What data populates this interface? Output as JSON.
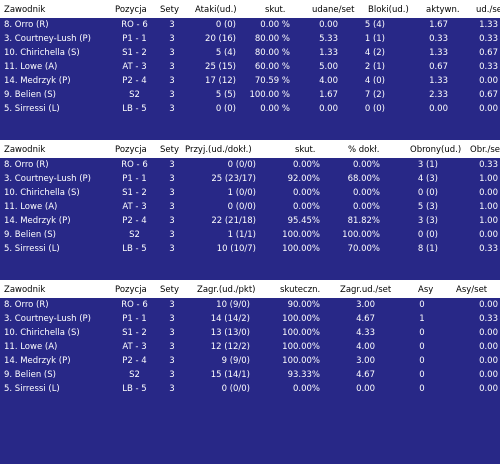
{
  "tables": [
    {
      "headers": [
        "Zawodnik",
        "Pozycja",
        "Sety",
        "Ataki(ud.)",
        "skut.",
        "udane/set",
        "Bloki(ud.)",
        "aktywn.",
        "ud./se"
      ],
      "rows": [
        [
          "8. Orro (R)",
          "RO - 6",
          "3",
          "0 (0)",
          "0.00 %",
          "0.00",
          "5 (4)",
          "1.67",
          "1.33"
        ],
        [
          "3. Courtney-Lush (P)",
          "P1 - 1",
          "3",
          "20 (16)",
          "80.00 %",
          "5.33",
          "1 (1)",
          "0.33",
          "0.33"
        ],
        [
          "10. Chirichella (S)",
          "S1 - 2",
          "3",
          "5 (4)",
          "80.00 %",
          "1.33",
          "4 (2)",
          "1.33",
          "0.67"
        ],
        [
          "11. Lowe (A)",
          "AT - 3",
          "3",
          "25 (15)",
          "60.00 %",
          "5.00",
          "2 (1)",
          "0.67",
          "0.33"
        ],
        [
          "14. Medrzyk (P)",
          "P2 - 4",
          "3",
          "17 (12)",
          "70.59 %",
          "4.00",
          "4 (0)",
          "1.33",
          "0.00"
        ],
        [
          "9. Belien (S)",
          "S2",
          "3",
          "5 (5)",
          "100.00 %",
          "1.67",
          "7 (2)",
          "2.33",
          "0.67"
        ],
        [
          "5. Sirressi (L)",
          "LB - 5",
          "3",
          "0 (0)",
          "0.00 %",
          "0.00",
          "0 (0)",
          "0.00",
          "0.00"
        ]
      ]
    },
    {
      "headers": [
        "Zawodnik",
        "Pozycja",
        "Sety",
        "Przyj.(ud./dokł.)",
        "skut.",
        "% dokł.",
        "Obrony(ud.)",
        "Obr./se"
      ],
      "rows": [
        [
          "8. Orro (R)",
          "RO - 6",
          "3",
          "0 (0/0)",
          "0.00%",
          "0.00%",
          "3 (1)",
          "0.33"
        ],
        [
          "3. Courtney-Lush (P)",
          "P1 - 1",
          "3",
          "25 (23/17)",
          "92.00%",
          "68.00%",
          "4 (3)",
          "1.00"
        ],
        [
          "10. Chirichella (S)",
          "S1 - 2",
          "3",
          "1 (0/0)",
          "0.00%",
          "0.00%",
          "0 (0)",
          "0.00"
        ],
        [
          "11. Lowe (A)",
          "AT - 3",
          "3",
          "0 (0/0)",
          "0.00%",
          "0.00%",
          "5 (3)",
          "1.00"
        ],
        [
          "14. Medrzyk (P)",
          "P2 - 4",
          "3",
          "22 (21/18)",
          "95.45%",
          "81.82%",
          "3 (3)",
          "1.00"
        ],
        [
          "9. Belien (S)",
          "S2",
          "3",
          "1 (1/1)",
          "100.00%",
          "100.00%",
          "0 (0)",
          "0.00"
        ],
        [
          "5. Sirressi (L)",
          "LB - 5",
          "3",
          "10 (10/7)",
          "100.00%",
          "70.00%",
          "8 (1)",
          "0.33"
        ]
      ]
    },
    {
      "headers": [
        "Zawodnik",
        "Pozycja",
        "Sety",
        "Zagr.(ud./pkt)",
        "skuteczn.",
        "Zagr.ud./set",
        "Asy",
        "Asy/set"
      ],
      "rows": [
        [
          "8. Orro (R)",
          "RO - 6",
          "3",
          "10 (9/0)",
          "90.00%",
          "3.00",
          "0",
          "0.00"
        ],
        [
          "3. Courtney-Lush (P)",
          "P1 - 1",
          "3",
          "14 (14/2)",
          "100.00%",
          "4.67",
          "1",
          "0.33"
        ],
        [
          "10. Chirichella (S)",
          "S1 - 2",
          "3",
          "13 (13/0)",
          "100.00%",
          "4.33",
          "0",
          "0.00"
        ],
        [
          "11. Lowe (A)",
          "AT - 3",
          "3",
          "12 (12/2)",
          "100.00%",
          "4.00",
          "0",
          "0.00"
        ],
        [
          "14. Medrzyk (P)",
          "P2 - 4",
          "3",
          "9 (9/0)",
          "100.00%",
          "3.00",
          "0",
          "0.00"
        ],
        [
          "9. Belien (S)",
          "S2",
          "3",
          "15 (14/1)",
          "93.33%",
          "4.67",
          "0",
          "0.00"
        ],
        [
          "5. Sirressi (L)",
          "LB - 5",
          "3",
          "0 (0/0)",
          "0.00%",
          "0.00",
          "0",
          "0.00"
        ]
      ]
    }
  ]
}
